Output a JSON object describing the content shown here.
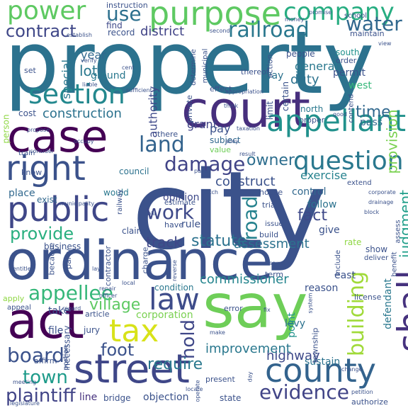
{
  "palette": {
    "deep_purple": "#440154",
    "indigo": "#3b528b",
    "blue": "#31688e",
    "teal": "#21918c",
    "green": "#35b779",
    "lime": "#8fd744",
    "yellow": "#fde725"
  },
  "words": [
    {
      "text": "property",
      "color": "#2c728e"
    },
    {
      "text": "city",
      "color": "#3b528b"
    },
    {
      "text": "court",
      "color": "#472f7d"
    },
    {
      "text": "ordinance",
      "color": "#3b528b"
    },
    {
      "text": "say",
      "color": "#6ece58"
    },
    {
      "text": "case",
      "color": "#440154"
    },
    {
      "text": "street",
      "color": "#3f4788"
    },
    {
      "text": "act",
      "color": "#440154"
    },
    {
      "text": "county",
      "color": "#33638d"
    },
    {
      "text": "purpose",
      "color": "#5ec962"
    },
    {
      "text": "right",
      "color": "#3b528b"
    },
    {
      "text": "public",
      "color": "#3f4788"
    },
    {
      "text": "appellant",
      "color": "#21918c"
    },
    {
      "text": "shall",
      "color": "#46327e"
    },
    {
      "text": "tax",
      "color": "#d8e219"
    },
    {
      "text": "law",
      "color": "#3e4c8a"
    },
    {
      "text": "section",
      "color": "#23888e"
    },
    {
      "text": "question",
      "color": "#2a788e"
    },
    {
      "text": "power",
      "color": "#5ec962"
    },
    {
      "text": "company",
      "color": "#27ad81"
    },
    {
      "text": "railroad",
      "color": "#2a788e"
    },
    {
      "text": "water",
      "color": "#31688e"
    },
    {
      "text": "land",
      "color": "#33638d"
    },
    {
      "text": "damage",
      "color": "#414487"
    },
    {
      "text": "appellee",
      "color": "#35b779"
    },
    {
      "text": "board",
      "color": "#3b528b"
    },
    {
      "text": "evidence",
      "color": "#414487"
    },
    {
      "text": "plaintiff",
      "color": "#414487"
    },
    {
      "text": "town",
      "color": "#1e9b8a"
    },
    {
      "text": "building",
      "color": "#a0da39"
    },
    {
      "text": "work",
      "color": "#3e4989"
    },
    {
      "text": "contract",
      "color": "#3f4788"
    },
    {
      "text": "provide",
      "color": "#29af7f"
    },
    {
      "text": "road",
      "color": "#26828e"
    },
    {
      "text": "use",
      "color": "#2d708e"
    },
    {
      "text": "hold",
      "color": "#3f4788"
    },
    {
      "text": "foot",
      "color": "#3b528b"
    },
    {
      "text": "owner",
      "color": "#2e6e8e"
    },
    {
      "text": "statute",
      "color": "#2c728e"
    },
    {
      "text": "construction",
      "color": "#2c728e"
    },
    {
      "text": "time",
      "color": "#31688e"
    },
    {
      "text": "village",
      "color": "#5ec962"
    },
    {
      "text": "commissioner",
      "color": "#25858e"
    },
    {
      "text": "highway",
      "color": "#3e4989"
    },
    {
      "text": "improvement",
      "color": "#2a788e"
    },
    {
      "text": "require",
      "color": "#2a788e"
    },
    {
      "text": "assessment",
      "color": "#2c728e"
    },
    {
      "text": "judgment",
      "color": "#1f9e89"
    },
    {
      "text": "district",
      "color": "#414487"
    },
    {
      "text": "construct",
      "color": "#3b528b"
    },
    {
      "text": "fact",
      "color": "#3e4989"
    },
    {
      "text": "track",
      "color": "#3f4788"
    },
    {
      "text": "provision",
      "color": "#7ad151"
    },
    {
      "text": "lot",
      "color": "#2a788e"
    },
    {
      "text": "corporation",
      "color": "#7ad151"
    },
    {
      "text": "year",
      "color": "#31688e"
    },
    {
      "text": "general",
      "color": "#2a788e"
    },
    {
      "text": "duty",
      "color": "#2c728e"
    },
    {
      "text": "exercise",
      "color": "#26828e"
    },
    {
      "text": "authority",
      "color": "#3e4989"
    },
    {
      "text": "special",
      "color": "#2a788e"
    },
    {
      "text": "ground",
      "color": "#2a788e"
    },
    {
      "text": "grant",
      "color": "#414487"
    },
    {
      "text": "pay",
      "color": "#3b528b"
    },
    {
      "text": "subject",
      "color": "#31688e"
    },
    {
      "text": "opinion",
      "color": "#3e4989"
    },
    {
      "text": "rule",
      "color": "#3b528b"
    },
    {
      "text": "follow",
      "color": "#2c728e"
    },
    {
      "text": "control",
      "color": "#31688e"
    },
    {
      "text": "levy",
      "color": "#2c728e"
    },
    {
      "text": "give",
      "color": "#3b528b"
    },
    {
      "text": "point",
      "color": "#21918c"
    },
    {
      "text": "sustain",
      "color": "#2c728e"
    },
    {
      "text": "condition",
      "color": "#2a788e"
    },
    {
      "text": "reason",
      "color": "#3b528b"
    },
    {
      "text": "defendant",
      "color": "#2a788e"
    },
    {
      "text": "people",
      "color": "#3b528b"
    },
    {
      "text": "permit",
      "color": "#3b528b"
    },
    {
      "text": "record",
      "color": "#3b528b"
    },
    {
      "text": "find",
      "color": "#3e4989"
    },
    {
      "text": "instruction",
      "color": "#3b528b"
    },
    {
      "text": "state",
      "color": "#3b528b"
    },
    {
      "text": "line",
      "color": "#46327e"
    },
    {
      "text": "bridge",
      "color": "#3b528b"
    },
    {
      "text": "objection",
      "color": "#3b528b"
    },
    {
      "text": "file",
      "color": "#3b528b"
    },
    {
      "text": "jury",
      "color": "#3b528b"
    },
    {
      "text": "take",
      "color": "#3b528b"
    },
    {
      "text": "way",
      "color": "#2c728e"
    },
    {
      "text": "place",
      "color": "#31688e"
    },
    {
      "text": "exist",
      "color": "#31688e"
    },
    {
      "text": "council",
      "color": "#2c728e"
    },
    {
      "text": "would",
      "color": "#2a788e"
    },
    {
      "text": "claim",
      "color": "#3b528b"
    },
    {
      "text": "business",
      "color": "#3b528b"
    },
    {
      "text": "west",
      "color": "#35b779"
    },
    {
      "text": "north",
      "color": "#2a788e"
    },
    {
      "text": "east",
      "color": "#3b528b"
    },
    {
      "text": "south",
      "color": "#21918c"
    },
    {
      "text": "order",
      "color": "#3b528b"
    },
    {
      "text": "school",
      "color": "#3b528b"
    },
    {
      "text": "maintain",
      "color": "#3b528b"
    },
    {
      "text": "effect",
      "color": "#3b528b"
    },
    {
      "text": "limit",
      "color": "#3b528b"
    },
    {
      "text": "certain",
      "color": "#3b528b"
    },
    {
      "text": "proper",
      "color": "#3b528b"
    },
    {
      "text": "pass",
      "color": "#31688e"
    },
    {
      "text": "value",
      "color": "#6ece58"
    },
    {
      "text": "there",
      "color": "#3b528b"
    },
    {
      "text": "private",
      "color": "#3b528b"
    },
    {
      "text": "cost",
      "color": "#3b528b"
    },
    {
      "text": "person",
      "color": "#8fd744"
    },
    {
      "text": "train",
      "color": "#3b528b"
    },
    {
      "text": "know",
      "color": "#3b528b"
    },
    {
      "text": "set",
      "color": "#3b528b"
    },
    {
      "text": "term",
      "color": "#3b528b"
    },
    {
      "text": "show",
      "color": "#3b528b"
    },
    {
      "text": "build",
      "color": "#3b528b"
    },
    {
      "text": "house",
      "color": "#3b528b"
    },
    {
      "text": "trial",
      "color": "#3b528b"
    },
    {
      "text": "issue",
      "color": "#3b528b"
    },
    {
      "text": "have",
      "color": "#3b528b"
    },
    {
      "text": "charge",
      "color": "#3b528b"
    },
    {
      "text": "contractor",
      "color": "#3b528b"
    },
    {
      "text": "party",
      "color": "#3b528b"
    },
    {
      "text": "because",
      "color": "#3b528b"
    },
    {
      "text": "necessary",
      "color": "#3b528b"
    },
    {
      "text": "article",
      "color": "#3b528b"
    },
    {
      "text": "present",
      "color": "#3b528b"
    },
    {
      "text": "affirm",
      "color": "#3b528b"
    },
    {
      "text": "portion",
      "color": "#3b528b"
    },
    {
      "text": "municipal",
      "color": "#3b528b"
    },
    {
      "text": "determine",
      "color": "#3b528b"
    },
    {
      "text": "thereof",
      "color": "#3b528b"
    },
    {
      "text": "action",
      "color": "#3b528b"
    },
    {
      "text": "license",
      "color": "#3b528b"
    },
    {
      "text": "township",
      "color": "#3b528b"
    },
    {
      "text": "authorize",
      "color": "#3b528b"
    },
    {
      "text": "error",
      "color": "#3b528b"
    },
    {
      "text": "estimate",
      "color": "#3b528b"
    },
    {
      "text": "extend",
      "color": "#3b528b"
    },
    {
      "text": "rate",
      "color": "#8fd744"
    },
    {
      "text": "benefit",
      "color": "#3b528b"
    },
    {
      "text": "apply",
      "color": "#8fd744"
    },
    {
      "text": "appeal",
      "color": "#3b528b"
    },
    {
      "text": "contend",
      "color": "#3b528b"
    },
    {
      "text": "deliver",
      "color": "#3b528b"
    },
    {
      "text": "assess",
      "color": "#3b528b"
    },
    {
      "text": "include",
      "color": "#3b528b"
    },
    {
      "text": "railway",
      "color": "#3b528b"
    },
    {
      "text": "sufficient",
      "color": "#3b528b"
    },
    {
      "text": "establish",
      "color": "#3b528b"
    },
    {
      "text": "money",
      "color": "#3b528b"
    },
    {
      "text": "promise",
      "color": "#3b528b"
    },
    {
      "text": "second",
      "color": "#3b528b"
    },
    {
      "text": "view",
      "color": "#3b528b"
    },
    {
      "text": "think",
      "color": "#3b528b"
    },
    {
      "text": "taxation",
      "color": "#3b528b"
    },
    {
      "text": "sewer",
      "color": "#3b528b"
    },
    {
      "text": "change",
      "color": "#3b528b"
    },
    {
      "text": "meeting",
      "color": "#3b528b"
    },
    {
      "text": "legislature",
      "color": "#3b528b"
    },
    {
      "text": "municipality",
      "color": "#3b528b"
    },
    {
      "text": "entitle",
      "color": "#3b528b"
    },
    {
      "text": "consider",
      "color": "#3b528b"
    },
    {
      "text": "propose",
      "color": "#3b528b"
    },
    {
      "text": "corporate",
      "color": "#3b528b"
    },
    {
      "text": "good",
      "color": "#3b528b"
    },
    {
      "text": "repair",
      "color": "#3b528b"
    },
    {
      "text": "officer",
      "color": "#3b528b"
    },
    {
      "text": "regard",
      "color": "#3b528b"
    },
    {
      "text": "system",
      "color": "#3b528b"
    },
    {
      "text": "drainage",
      "color": "#3b528b"
    },
    {
      "text": "block",
      "color": "#3b528b"
    },
    {
      "text": "locate",
      "color": "#3b528b"
    },
    {
      "text": "operate",
      "color": "#3b528b"
    },
    {
      "text": "make",
      "color": "#3b528b"
    },
    {
      "text": "constitution",
      "color": "#3b528b"
    },
    {
      "text": "appropriation",
      "color": "#3b528b"
    },
    {
      "text": "day",
      "color": "#3b528b"
    },
    {
      "text": "fix",
      "color": "#3b528b"
    },
    {
      "text": "result",
      "color": "#3b528b"
    },
    {
      "text": "alley",
      "color": "#3b528b"
    },
    {
      "text": "local",
      "color": "#3b528b"
    },
    {
      "text": "reverse",
      "color": "#3b528b"
    },
    {
      "text": "verify",
      "color": "#3b528b"
    },
    {
      "text": "liable",
      "color": "#3b528b"
    },
    {
      "text": "lay",
      "color": "#3b528b"
    },
    {
      "text": "bill",
      "color": "#3b528b"
    },
    {
      "text": "cent",
      "color": "#3b528b"
    },
    {
      "text": "ditch",
      "color": "#3b528b"
    },
    {
      "text": "occupy",
      "color": "#3b528b"
    },
    {
      "text": "petition",
      "color": "#3b528b"
    },
    {
      "text": "pave",
      "color": "#3b528b"
    }
  ]
}
